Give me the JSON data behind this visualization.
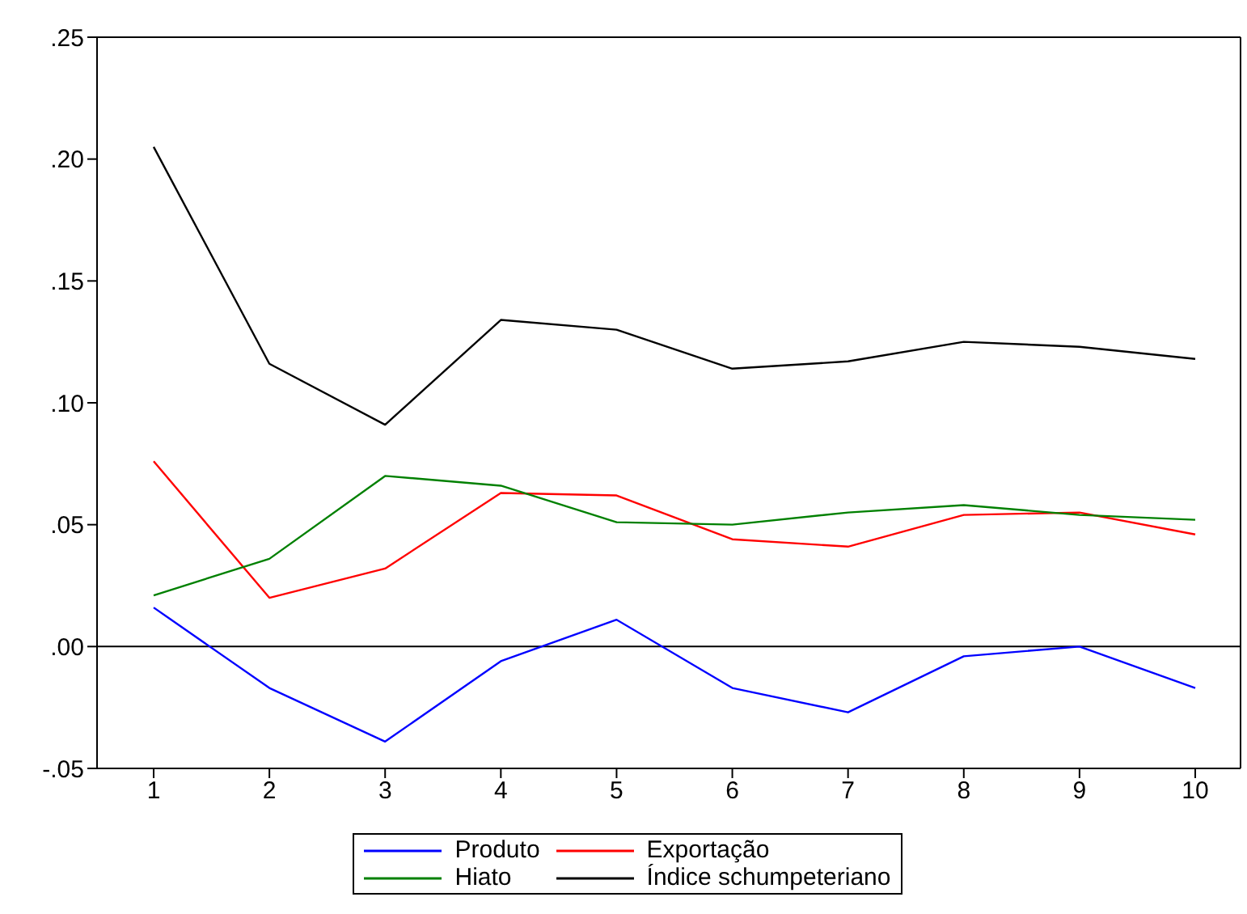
{
  "chart_data": {
    "type": "line",
    "categories": [
      "1",
      "2",
      "3",
      "4",
      "5",
      "6",
      "7",
      "8",
      "9",
      "10"
    ],
    "series": [
      {
        "name": "Produto",
        "color": "#0000ff",
        "values": [
          0.016,
          -0.017,
          -0.039,
          -0.006,
          0.011,
          -0.017,
          -0.027,
          -0.004,
          0.0,
          -0.017
        ]
      },
      {
        "name": "Exportação",
        "color": "#ff0000",
        "values": [
          0.076,
          0.02,
          0.032,
          0.063,
          0.062,
          0.044,
          0.041,
          0.054,
          0.055,
          0.046
        ]
      },
      {
        "name": "Hiato",
        "color": "#008000",
        "values": [
          0.021,
          0.036,
          0.07,
          0.066,
          0.051,
          0.05,
          0.055,
          0.058,
          0.054,
          0.052
        ]
      },
      {
        "name": "Índice schumpeteriano",
        "color": "#000000",
        "values": [
          0.205,
          0.116,
          0.091,
          0.134,
          0.13,
          0.114,
          0.117,
          0.125,
          0.123,
          0.118
        ]
      }
    ],
    "ylim": [
      -0.05,
      0.25
    ],
    "yticks": [
      {
        "value": -0.05,
        "label": "-.05"
      },
      {
        "value": 0,
        "label": ".00"
      },
      {
        "value": 0.05,
        "label": ".05"
      },
      {
        "value": 0.1,
        "label": ".10"
      },
      {
        "value": 0.15,
        "label": ".15"
      },
      {
        "value": 0.2,
        "label": ".20"
      },
      {
        "value": 0.25,
        "label": ".25"
      }
    ],
    "ref_lines": [
      {
        "axis": "y",
        "value": 0,
        "label": null,
        "color": "#000000"
      }
    ],
    "grid": false,
    "legend": "bottom",
    "marker": "none",
    "line_style": "solid"
  }
}
